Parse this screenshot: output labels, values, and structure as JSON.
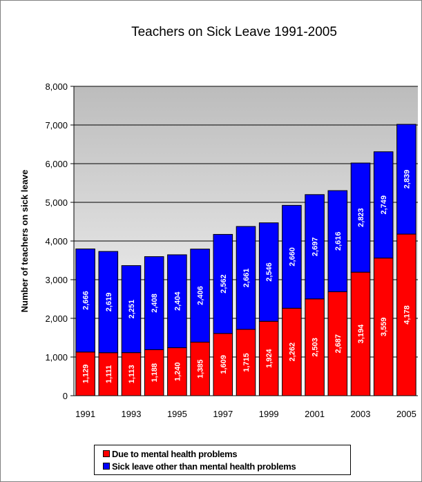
{
  "chart_data": {
    "type": "bar",
    "stacked": true,
    "title": "Teachers on Sick Leave 1991-2005",
    "ylabel": "Number of teachers  on sick leave",
    "xlabel": "",
    "ylim": [
      0,
      8000
    ],
    "yticks": [
      "0",
      "1,000",
      "2,000",
      "3,000",
      "4,000",
      "5,000",
      "6,000",
      "7,000",
      "8,000"
    ],
    "ytick_values": [
      0,
      1000,
      2000,
      3000,
      4000,
      5000,
      6000,
      7000,
      8000
    ],
    "categories": [
      "1991",
      "1992",
      "1993",
      "1994",
      "1995",
      "1996",
      "1997",
      "1998",
      "1999",
      "2000",
      "2001",
      "2002",
      "2003",
      "2004",
      "2005"
    ],
    "xtick_labels": [
      "1991",
      "",
      "1993",
      "",
      "1995",
      "",
      "1997",
      "",
      "1999",
      "",
      "2001",
      "",
      "2003",
      "",
      "2005"
    ],
    "grid": true,
    "legend_position": "bottom",
    "series": [
      {
        "name": "Due to mental health problems",
        "color": "#ff0000",
        "values": [
          1129,
          1111,
          1113,
          1188,
          1240,
          1385,
          1609,
          1715,
          1924,
          2262,
          2503,
          2687,
          3194,
          3559,
          4178
        ],
        "labels": [
          "1,129",
          "1,111",
          "1,113",
          "1,188",
          "1,240",
          "1,385",
          "1,609",
          "1,715",
          "1,924",
          "2,262",
          "2,503",
          "2,687",
          "3,194",
          "3,559",
          "4,178"
        ]
      },
      {
        "name": "Sick leave other than mental health problems",
        "color": "#0000ff",
        "values": [
          2666,
          2619,
          2251,
          2408,
          2404,
          2406,
          2562,
          2661,
          2546,
          2660,
          2697,
          2616,
          2823,
          2749,
          2839
        ],
        "labels": [
          "2,666",
          "2,619",
          "2,251",
          "2,408",
          "2,404",
          "2,406",
          "2,562",
          "2,661",
          "2,546",
          "2,660",
          "2,697",
          "2,616",
          "2,823",
          "2,749",
          "2,839"
        ]
      }
    ]
  },
  "legend": {
    "item1": "Due to mental health problems",
    "item2": "Sick leave other than mental health problems"
  }
}
